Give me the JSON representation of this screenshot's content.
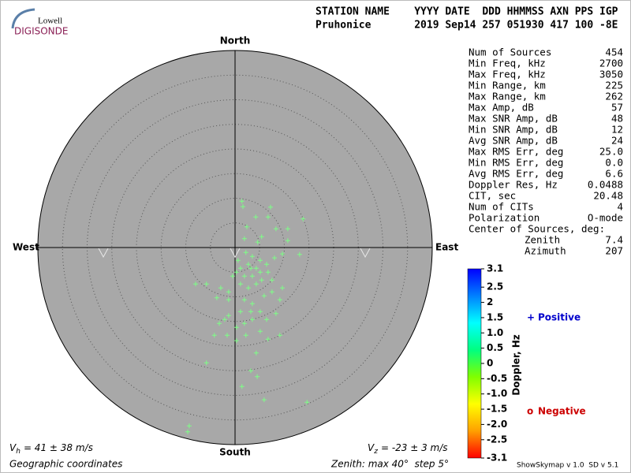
{
  "header": {
    "columns": "STATION NAME    YYYY DATE  DDD HHMMSS AXN PPS IGP",
    "values": "Pruhonice       2019 Sep14 257 051930 417 100 -8E"
  },
  "logo": {
    "top": "Lowell",
    "bottom": "DIGISONDE"
  },
  "stats": {
    "rows": [
      [
        "Num of Sources",
        "454"
      ],
      [
        "Min Freq, kHz",
        "2700"
      ],
      [
        "Max Freq, kHz",
        "3050"
      ],
      [
        "Min Range, km",
        "225"
      ],
      [
        "Max Range, km",
        "262"
      ],
      [
        "Max Amp, dB",
        "57"
      ],
      [
        "Max SNR Amp, dB",
        "48"
      ],
      [
        "Min SNR Amp, dB",
        "12"
      ],
      [
        "Avg SNR Amp, dB",
        "24"
      ],
      [
        "Max RMS Err, deg",
        "25.0"
      ],
      [
        "Min RMS Err, deg",
        "0.0"
      ],
      [
        "Avg RMS Err, deg",
        "6.6"
      ],
      [
        "Doppler Res, Hz",
        "0.0488"
      ],
      [
        "CIT, sec",
        "20.48"
      ],
      [
        "Num of CITs",
        "4"
      ],
      [
        "Polarization",
        "O-mode"
      ]
    ],
    "center_heading": "Center of Sources, deg:",
    "center_rows": [
      [
        "Zenith",
        "7.4"
      ],
      [
        "Azimuth",
        "207"
      ]
    ]
  },
  "chart_data": {
    "type": "skymap",
    "directions": {
      "north": "North",
      "south": "South",
      "west": "West",
      "east": "East"
    },
    "rlim": [
      0,
      40
    ],
    "rticks": [
      5,
      10,
      15,
      20,
      25,
      30,
      35
    ],
    "grid": true,
    "background": "#a8a8a8",
    "series": [
      {
        "color": "#7dff86",
        "x": [
          1.4,
          1.6,
          4.2,
          6.7,
          7.2,
          8.3,
          10.7,
          13.8,
          2.4,
          5.4,
          4.6,
          1.9,
          10.7,
          13.1,
          9.6,
          8.0,
          6.4,
          5.1,
          3.5,
          2.7,
          1.1,
          0.3,
          -0.5,
          1.9,
          3.5,
          5.1,
          6.7,
          4.3,
          2.7,
          1.1,
          -1.3,
          -2.9,
          -5.8,
          -8.0,
          -3.7,
          -1.3,
          1.9,
          3.5,
          5.9,
          7.5,
          9.1,
          8.3,
          5.1,
          3.5,
          1.1,
          -1.3,
          -3.2,
          -1.6,
          0.3,
          2.2,
          5.1,
          6.7,
          9.1,
          -4.2,
          -5.8,
          4.3,
          3.2,
          4.5,
          1.4,
          5.9,
          14.6,
          -9.3,
          -9.6,
          5.4,
          3.2,
          2.2,
          0.6,
          4.3,
          7.5,
          9.6,
          0.3,
          -2.1,
          1.9,
          3.2,
          6.4
        ],
        "y": [
          9.4,
          8.3,
          6.2,
          6.2,
          8.2,
          3.8,
          3.8,
          5.8,
          4.2,
          2.2,
          1.1,
          1.8,
          1.4,
          -1.4,
          -1.3,
          -2.1,
          -3.4,
          -2.6,
          -1.8,
          -3.4,
          -4.2,
          -5.0,
          -5.8,
          -5.8,
          -5.8,
          -5.0,
          -5.0,
          -7.4,
          -8.2,
          -7.4,
          -9.0,
          -8.2,
          -7.4,
          -7.4,
          -10.2,
          -10.6,
          -10.6,
          -11.4,
          -9.8,
          -9.0,
          -10.6,
          -13.4,
          -13.0,
          -14.6,
          -13.0,
          -13.8,
          -15.4,
          -17.8,
          -18.9,
          -17.8,
          -17.0,
          -18.6,
          -17.8,
          -17.8,
          -23.4,
          -21.4,
          -25.0,
          -26.2,
          -28.2,
          -30.9,
          -31.4,
          -36.2,
          -37.4,
          -6.6,
          -4.2,
          -1.0,
          -2.6,
          -4.2,
          -6.6,
          -8.2,
          -16.2,
          -14.6,
          -15.4,
          -13.0,
          -14.6
        ]
      }
    ],
    "legend": [
      {
        "symbol": "+",
        "text": "Positive",
        "color": "#0000cc"
      },
      {
        "symbol": "o",
        "text": "Negative",
        "color": "#cc0000"
      }
    ],
    "colorbar": {
      "label": "Doppler, Hz",
      "lim": [
        -3.1,
        3.1
      ],
      "ticks": [
        3.1,
        2.5,
        2,
        1.5,
        {
          "value": 1,
          "label": "1.0"
        },
        0.5,
        0,
        -0.5,
        {
          "value": -1,
          "label": "-1.0"
        },
        -1.5,
        {
          "value": -2,
          "label": "-2.0"
        },
        -2.5,
        -3.1
      ],
      "colors": [
        "#0000ff",
        "#0080ff",
        "#00ffff",
        "#00ff80",
        "#80ff00",
        "#ffff00",
        "#ffa000",
        "#ff0000"
      ]
    },
    "velocities": {
      "horizontal": {
        "symbol": "V",
        "sub": "h",
        "text": "= 41 ± 38 m/s"
      },
      "vertical": {
        "symbol": "V",
        "sub": "z",
        "text": "= -23 ± 3 m/s"
      }
    },
    "coordinates": "Geographic coordinates",
    "zenith_note": "Zenith: max 40°  step 5°",
    "version": "ShowSkymap v 1.0  SD v 5.1"
  }
}
